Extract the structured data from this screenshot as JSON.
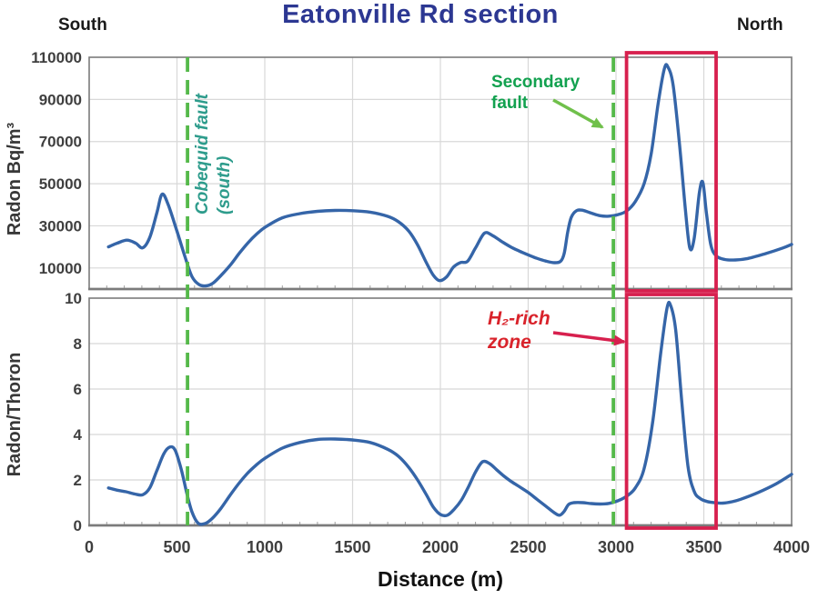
{
  "header": {
    "title": "Eatonville Rd section",
    "left_label": "South",
    "right_label": "North"
  },
  "xlabel": "Distance (m)",
  "colors": {
    "title": "#2c3792",
    "curve": "#3565a8",
    "grid": "#d8d8d8",
    "plot_border": "#7b7b7b",
    "fault_line_green": "#55b94a",
    "secondary_fault_text": "#12a14f",
    "cobequid_fault_text": "#2e9c8c",
    "h2_box": "#d7204e",
    "h2_text": "#d9232b",
    "tick_text": "#3f3f3f"
  },
  "chart_data": [
    {
      "type": "line",
      "ylabel": "Radon Bq/m³",
      "xlabel": "Distance (m)",
      "x_range": [
        0,
        4000
      ],
      "y_range": [
        0,
        110000
      ],
      "x_ticks": [
        0,
        500,
        1000,
        1500,
        2000,
        2500,
        3000,
        3500,
        4000
      ],
      "y_ticks": [
        10000,
        30000,
        50000,
        70000,
        90000,
        110000
      ],
      "grid": true,
      "legend": "none",
      "line_color": "#3565a8",
      "points": [
        [
          110,
          20000
        ],
        [
          160,
          21800
        ],
        [
          215,
          23200
        ],
        [
          265,
          21800
        ],
        [
          305,
          19600
        ],
        [
          345,
          24500
        ],
        [
          385,
          36000
        ],
        [
          415,
          45000
        ],
        [
          450,
          40000
        ],
        [
          500,
          27500
        ],
        [
          545,
          15500
        ],
        [
          585,
          6000
        ],
        [
          625,
          2200
        ],
        [
          665,
          1500
        ],
        [
          705,
          2800
        ],
        [
          755,
          6800
        ],
        [
          805,
          11500
        ],
        [
          855,
          17000
        ],
        [
          905,
          22000
        ],
        [
          955,
          26200
        ],
        [
          1005,
          29500
        ],
        [
          1100,
          33800
        ],
        [
          1200,
          35800
        ],
        [
          1300,
          36900
        ],
        [
          1400,
          37300
        ],
        [
          1500,
          37200
        ],
        [
          1600,
          36500
        ],
        [
          1700,
          34500
        ],
        [
          1760,
          32000
        ],
        [
          1820,
          27500
        ],
        [
          1870,
          21000
        ],
        [
          1920,
          12500
        ],
        [
          1960,
          6500
        ],
        [
          1995,
          4000
        ],
        [
          2035,
          5800
        ],
        [
          2075,
          10500
        ],
        [
          2115,
          12600
        ],
        [
          2155,
          13200
        ],
        [
          2200,
          19500
        ],
        [
          2250,
          26500
        ],
        [
          2295,
          25500
        ],
        [
          2350,
          22500
        ],
        [
          2400,
          20000
        ],
        [
          2450,
          18000
        ],
        [
          2500,
          16200
        ],
        [
          2550,
          14600
        ],
        [
          2600,
          13300
        ],
        [
          2650,
          12500
        ],
        [
          2685,
          13200
        ],
        [
          2705,
          17000
        ],
        [
          2725,
          27000
        ],
        [
          2745,
          34000
        ],
        [
          2775,
          37200
        ],
        [
          2810,
          37400
        ],
        [
          2860,
          36000
        ],
        [
          2910,
          34800
        ],
        [
          2960,
          34600
        ],
        [
          3010,
          35300
        ],
        [
          3060,
          37000
        ],
        [
          3110,
          41500
        ],
        [
          3160,
          50000
        ],
        [
          3200,
          64000
        ],
        [
          3240,
          88000
        ],
        [
          3275,
          104500
        ],
        [
          3295,
          105500
        ],
        [
          3325,
          97000
        ],
        [
          3360,
          70000
        ],
        [
          3395,
          38000
        ],
        [
          3420,
          19500
        ],
        [
          3445,
          24000
        ],
        [
          3475,
          46000
        ],
        [
          3495,
          50500
        ],
        [
          3515,
          36000
        ],
        [
          3540,
          21000
        ],
        [
          3570,
          15800
        ],
        [
          3620,
          14000
        ],
        [
          3680,
          13800
        ],
        [
          3750,
          14500
        ],
        [
          3850,
          16800
        ],
        [
          3950,
          19500
        ],
        [
          4000,
          21200
        ]
      ]
    },
    {
      "type": "line",
      "ylabel": "Radon/Thoron",
      "xlabel": "Distance (m)",
      "x_range": [
        0,
        4000
      ],
      "y_range": [
        0,
        10
      ],
      "x_ticks": [
        0,
        500,
        1000,
        1500,
        2000,
        2500,
        3000,
        3500,
        4000
      ],
      "y_ticks": [
        0,
        2,
        4,
        6,
        8,
        10
      ],
      "grid": true,
      "legend": "none",
      "line_color": "#3565a8",
      "points": [
        [
          110,
          1.65
        ],
        [
          160,
          1.55
        ],
        [
          210,
          1.48
        ],
        [
          260,
          1.38
        ],
        [
          305,
          1.35
        ],
        [
          345,
          1.65
        ],
        [
          385,
          2.4
        ],
        [
          425,
          3.15
        ],
        [
          460,
          3.45
        ],
        [
          490,
          3.3
        ],
        [
          525,
          2.45
        ],
        [
          555,
          1.45
        ],
        [
          585,
          0.6
        ],
        [
          620,
          0.1
        ],
        [
          660,
          0.08
        ],
        [
          700,
          0.3
        ],
        [
          750,
          0.75
        ],
        [
          800,
          1.3
        ],
        [
          850,
          1.82
        ],
        [
          900,
          2.28
        ],
        [
          950,
          2.65
        ],
        [
          1000,
          2.95
        ],
        [
          1100,
          3.4
        ],
        [
          1200,
          3.65
        ],
        [
          1300,
          3.78
        ],
        [
          1400,
          3.8
        ],
        [
          1500,
          3.76
        ],
        [
          1600,
          3.65
        ],
        [
          1700,
          3.35
        ],
        [
          1760,
          3.05
        ],
        [
          1820,
          2.55
        ],
        [
          1870,
          2.0
        ],
        [
          1920,
          1.35
        ],
        [
          1960,
          0.8
        ],
        [
          2000,
          0.48
        ],
        [
          2040,
          0.45
        ],
        [
          2080,
          0.72
        ],
        [
          2120,
          1.12
        ],
        [
          2160,
          1.7
        ],
        [
          2200,
          2.35
        ],
        [
          2240,
          2.8
        ],
        [
          2280,
          2.72
        ],
        [
          2320,
          2.45
        ],
        [
          2360,
          2.18
        ],
        [
          2400,
          1.95
        ],
        [
          2450,
          1.7
        ],
        [
          2500,
          1.45
        ],
        [
          2550,
          1.15
        ],
        [
          2600,
          0.85
        ],
        [
          2650,
          0.55
        ],
        [
          2680,
          0.45
        ],
        [
          2705,
          0.62
        ],
        [
          2730,
          0.92
        ],
        [
          2760,
          1.0
        ],
        [
          2810,
          1.0
        ],
        [
          2860,
          0.96
        ],
        [
          2910,
          0.94
        ],
        [
          2960,
          0.97
        ],
        [
          3010,
          1.08
        ],
        [
          3060,
          1.28
        ],
        [
          3110,
          1.65
        ],
        [
          3160,
          2.5
        ],
        [
          3210,
          4.6
        ],
        [
          3255,
          7.6
        ],
        [
          3290,
          9.55
        ],
        [
          3310,
          9.7
        ],
        [
          3340,
          8.6
        ],
        [
          3375,
          5.4
        ],
        [
          3410,
          2.6
        ],
        [
          3445,
          1.5
        ],
        [
          3480,
          1.18
        ],
        [
          3520,
          1.05
        ],
        [
          3560,
          1.0
        ],
        [
          3610,
          0.98
        ],
        [
          3660,
          1.04
        ],
        [
          3710,
          1.15
        ],
        [
          3810,
          1.45
        ],
        [
          3910,
          1.82
        ],
        [
          4000,
          2.25
        ]
      ]
    }
  ],
  "annotations": {
    "faults": [
      {
        "line1": "Cobequid fault",
        "line2": "(south)",
        "x": 560
      },
      {
        "line1": "Secondary",
        "line2": "fault",
        "x": 2985
      }
    ],
    "h2_zone": {
      "line1": "H₂-rich",
      "line2": "zone",
      "x_start": 3060,
      "x_end": 3570
    }
  }
}
